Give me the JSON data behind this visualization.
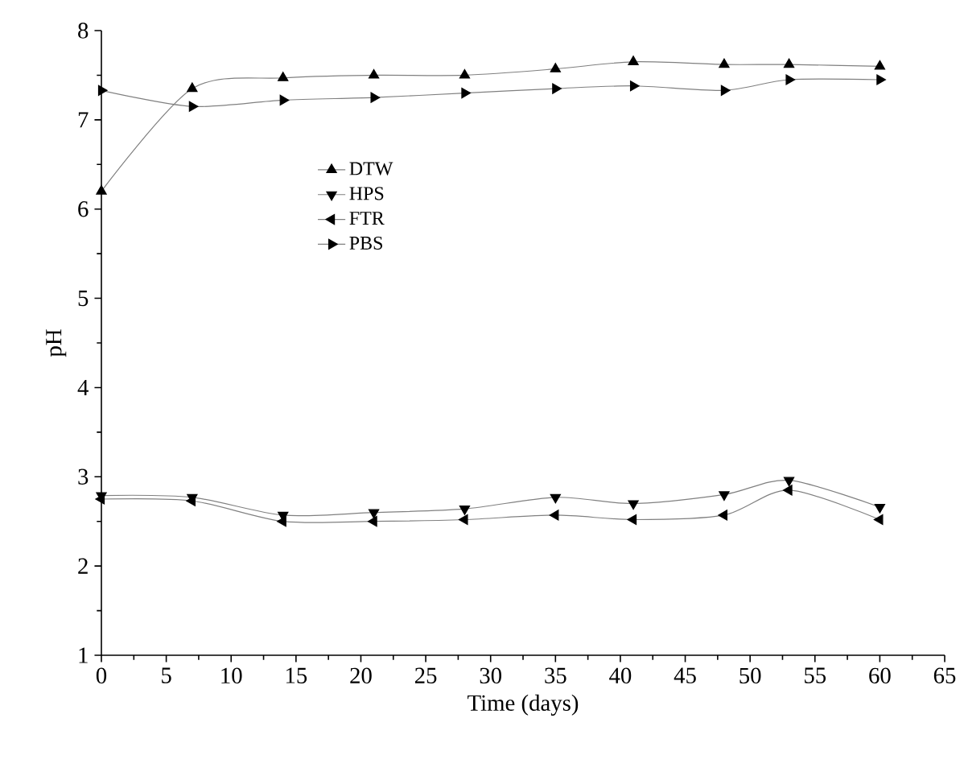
{
  "chart_data": {
    "type": "line",
    "xlabel": "Time (days)",
    "ylabel": "pH",
    "x": [
      0,
      7,
      14,
      21,
      28,
      35,
      41,
      48,
      53,
      60
    ],
    "series": [
      {
        "name": "DTW",
        "color": "#000000",
        "marker": "triangle",
        "values": [
          6.2,
          7.35,
          7.47,
          7.5,
          7.5,
          7.57,
          7.65,
          7.62,
          7.62,
          7.6
        ]
      },
      {
        "name": "HPS",
        "color": "#000000",
        "marker": "triangle-down",
        "values": [
          2.79,
          2.77,
          2.57,
          2.6,
          2.64,
          2.77,
          2.7,
          2.8,
          2.96,
          2.66
        ]
      },
      {
        "name": "FTR",
        "color": "#000000",
        "marker": "triangle-left",
        "values": [
          2.75,
          2.73,
          2.5,
          2.5,
          2.52,
          2.57,
          2.52,
          2.57,
          2.85,
          2.52
        ]
      },
      {
        "name": "PBS",
        "color": "#000000",
        "marker": "triangle-right",
        "values": [
          7.33,
          7.15,
          7.22,
          7.25,
          7.3,
          7.35,
          7.38,
          7.33,
          7.45,
          7.45
        ]
      }
    ],
    "xlim": [
      0,
      65
    ],
    "xticks": [
      0,
      5,
      10,
      15,
      20,
      25,
      30,
      35,
      40,
      45,
      50,
      55,
      60,
      65
    ],
    "ylim": [
      1,
      8
    ],
    "yticks": [
      1,
      2,
      3,
      4,
      5,
      6,
      7,
      8
    ],
    "grid": false,
    "legend": "top left",
    "line_style": "solid"
  }
}
